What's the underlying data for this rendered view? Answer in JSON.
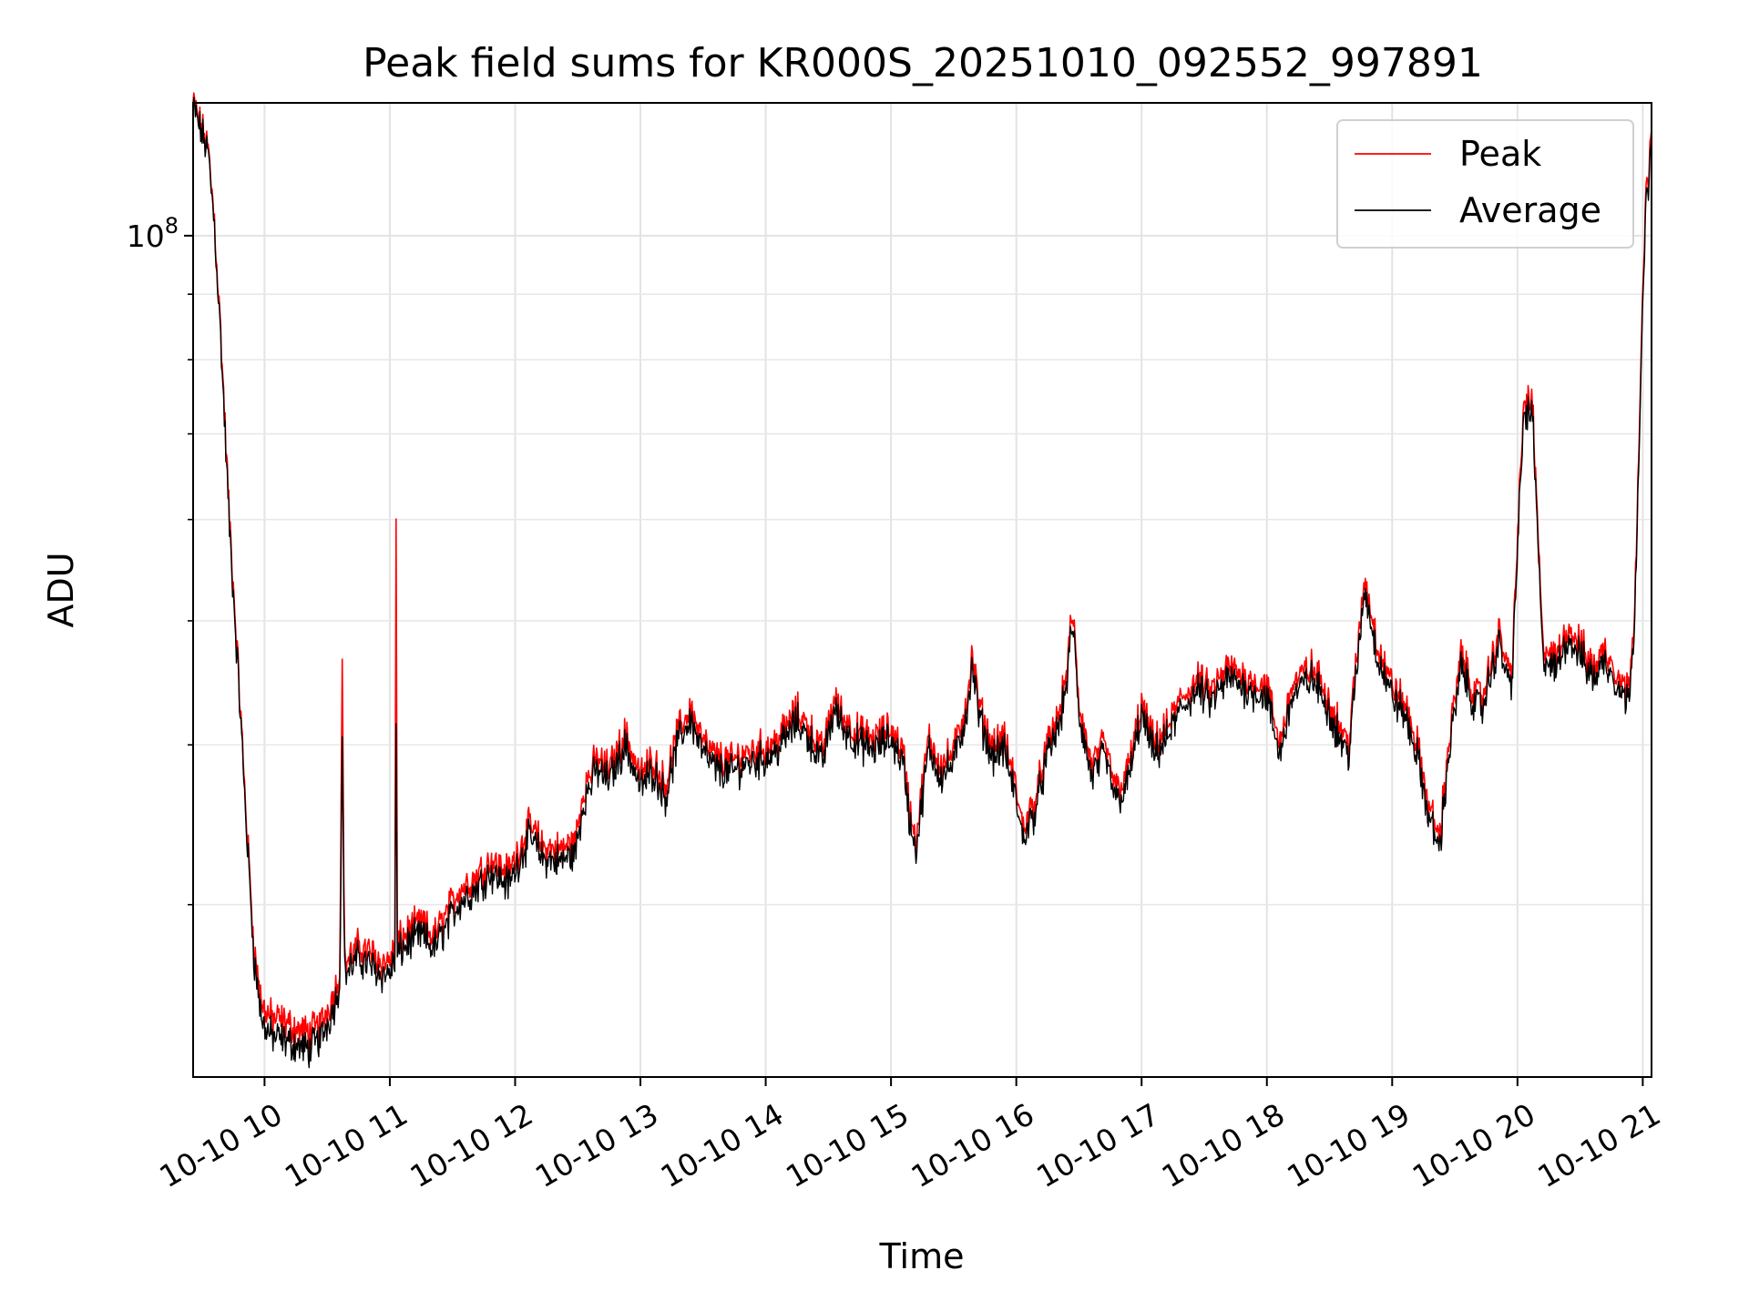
{
  "chart_data": {
    "type": "line",
    "title": "Peak field sums for KR000S_20251010_092552_997891",
    "xlabel": "Time",
    "ylabel": "ADU",
    "yscale": "log",
    "ylim": [
      22000000,
      127000000
    ],
    "xlim": [
      9.43,
      21.07
    ],
    "grid": true,
    "legend": {
      "position": "top-right",
      "entries": [
        "Peak",
        "Average"
      ]
    },
    "x_ticks": [
      {
        "value": 10,
        "label": "10-10 10"
      },
      {
        "value": 11,
        "label": "10-10 11"
      },
      {
        "value": 12,
        "label": "10-10 12"
      },
      {
        "value": 13,
        "label": "10-10 13"
      },
      {
        "value": 14,
        "label": "10-10 14"
      },
      {
        "value": 15,
        "label": "10-10 15"
      },
      {
        "value": 16,
        "label": "10-10 16"
      },
      {
        "value": 17,
        "label": "10-10 17"
      },
      {
        "value": 18,
        "label": "10-10 18"
      },
      {
        "value": 19,
        "label": "10-10 19"
      },
      {
        "value": 20,
        "label": "10-10 20"
      },
      {
        "value": 21,
        "label": "10-10 21"
      }
    ],
    "y_major_ticks": [
      {
        "value": 100000000,
        "base": "10",
        "exp": "8"
      }
    ],
    "y_minor_ticks": [
      30000000,
      40000000,
      50000000,
      60000000,
      70000000,
      80000000,
      90000000
    ],
    "series": [
      {
        "name": "Peak",
        "color": "#ff0000",
        "points": [
          [
            9.43,
            127000000
          ],
          [
            9.55,
            117000000
          ],
          [
            9.6,
            103000000
          ],
          [
            9.65,
            84000000
          ],
          [
            9.72,
            60000000
          ],
          [
            9.8,
            44000000
          ],
          [
            9.87,
            33000000
          ],
          [
            9.92,
            27500000
          ],
          [
            9.98,
            25000000
          ],
          [
            10.05,
            24500000
          ],
          [
            10.15,
            24300000
          ],
          [
            10.25,
            24000000
          ],
          [
            10.35,
            23800000
          ],
          [
            10.45,
            24200000
          ],
          [
            10.55,
            25500000
          ],
          [
            10.6,
            26500000
          ],
          [
            10.62,
            46000000
          ],
          [
            10.64,
            27000000
          ],
          [
            10.75,
            27800000
          ],
          [
            10.85,
            27500000
          ],
          [
            10.95,
            27000000
          ],
          [
            11.0,
            27200000
          ],
          [
            11.04,
            27600000
          ],
          [
            11.05,
            60000000
          ],
          [
            11.06,
            28000000
          ],
          [
            11.15,
            28600000
          ],
          [
            11.25,
            29000000
          ],
          [
            11.35,
            28300000
          ],
          [
            11.45,
            29500000
          ],
          [
            11.55,
            30800000
          ],
          [
            11.68,
            31500000
          ],
          [
            11.8,
            32500000
          ],
          [
            11.95,
            31800000
          ],
          [
            12.05,
            33500000
          ],
          [
            12.12,
            34600000
          ],
          [
            12.22,
            33300000
          ],
          [
            12.35,
            33100000
          ],
          [
            12.48,
            33600000
          ],
          [
            12.55,
            37000000
          ],
          [
            12.65,
            39000000
          ],
          [
            12.75,
            38300000
          ],
          [
            12.88,
            40800000
          ],
          [
            13.0,
            37800000
          ],
          [
            13.1,
            39000000
          ],
          [
            13.2,
            37200000
          ],
          [
            13.3,
            41000000
          ],
          [
            13.4,
            42700000
          ],
          [
            13.5,
            40200000
          ],
          [
            13.6,
            39100000
          ],
          [
            13.72,
            38800000
          ],
          [
            13.85,
            39500000
          ],
          [
            14.0,
            39800000
          ],
          [
            14.1,
            40500000
          ],
          [
            14.25,
            42500000
          ],
          [
            14.35,
            41200000
          ],
          [
            14.45,
            39500000
          ],
          [
            14.55,
            43500000
          ],
          [
            14.62,
            42000000
          ],
          [
            14.72,
            41000000
          ],
          [
            14.85,
            40400000
          ],
          [
            15.0,
            41200000
          ],
          [
            15.1,
            39500000
          ],
          [
            15.15,
            35500000
          ],
          [
            15.2,
            33800000
          ],
          [
            15.3,
            40500000
          ],
          [
            15.4,
            38600000
          ],
          [
            15.5,
            39500000
          ],
          [
            15.6,
            43000000
          ],
          [
            15.65,
            47000000
          ],
          [
            15.7,
            43000000
          ],
          [
            15.8,
            40000000
          ],
          [
            15.9,
            40500000
          ],
          [
            16.0,
            37000000
          ],
          [
            16.05,
            34500000
          ],
          [
            16.15,
            36200000
          ],
          [
            16.25,
            40000000
          ],
          [
            16.35,
            42500000
          ],
          [
            16.4,
            45500000
          ],
          [
            16.45,
            51000000
          ],
          [
            16.5,
            43000000
          ],
          [
            16.6,
            38500000
          ],
          [
            16.7,
            40000000
          ],
          [
            16.8,
            37000000
          ],
          [
            16.88,
            37800000
          ],
          [
            17.0,
            43000000
          ],
          [
            17.1,
            40000000
          ],
          [
            17.2,
            41200000
          ],
          [
            17.32,
            43500000
          ],
          [
            17.45,
            45000000
          ],
          [
            17.55,
            44000000
          ],
          [
            17.7,
            46000000
          ],
          [
            17.85,
            45000000
          ],
          [
            18.0,
            44500000
          ],
          [
            18.1,
            40000000
          ],
          [
            18.2,
            44500000
          ],
          [
            18.35,
            46000000
          ],
          [
            18.45,
            44500000
          ],
          [
            18.55,
            42000000
          ],
          [
            18.65,
            40000000
          ],
          [
            18.72,
            47000000
          ],
          [
            18.78,
            54000000
          ],
          [
            18.88,
            48000000
          ],
          [
            19.0,
            44500000
          ],
          [
            19.1,
            43000000
          ],
          [
            19.2,
            40000000
          ],
          [
            19.3,
            35500000
          ],
          [
            19.38,
            34000000
          ],
          [
            19.45,
            40000000
          ],
          [
            19.55,
            47000000
          ],
          [
            19.65,
            44000000
          ],
          [
            19.72,
            43500000
          ],
          [
            19.85,
            49000000
          ],
          [
            19.95,
            45000000
          ],
          [
            20.05,
            74000000
          ],
          [
            20.12,
            74000000
          ],
          [
            20.2,
            48000000
          ],
          [
            20.3,
            46500000
          ],
          [
            20.4,
            49500000
          ],
          [
            20.5,
            48000000
          ],
          [
            20.6,
            46000000
          ],
          [
            20.7,
            47500000
          ],
          [
            20.8,
            45500000
          ],
          [
            20.88,
            44000000
          ],
          [
            20.93,
            50000000
          ],
          [
            20.98,
            75000000
          ],
          [
            21.02,
            105000000
          ],
          [
            21.07,
            121000000
          ]
        ]
      },
      {
        "name": "Average",
        "color": "#000000",
        "points": [
          [
            9.43,
            126000000
          ],
          [
            9.55,
            116000000
          ],
          [
            9.6,
            102000000
          ],
          [
            9.65,
            83000000
          ],
          [
            9.72,
            59000000
          ],
          [
            9.8,
            43500000
          ],
          [
            9.87,
            32500000
          ],
          [
            9.92,
            27000000
          ],
          [
            9.98,
            24300000
          ],
          [
            10.05,
            23700000
          ],
          [
            10.15,
            23500000
          ],
          [
            10.25,
            23300000
          ],
          [
            10.35,
            23100000
          ],
          [
            10.45,
            23600000
          ],
          [
            10.55,
            24900000
          ],
          [
            10.6,
            26000000
          ],
          [
            10.62,
            40000000
          ],
          [
            10.64,
            26500000
          ],
          [
            10.75,
            27200000
          ],
          [
            10.85,
            26900000
          ],
          [
            10.95,
            26400000
          ],
          [
            11.0,
            26600000
          ],
          [
            11.04,
            27000000
          ],
          [
            11.05,
            41500000
          ],
          [
            11.06,
            27400000
          ],
          [
            11.15,
            28000000
          ],
          [
            11.25,
            28400000
          ],
          [
            11.35,
            27700000
          ],
          [
            11.45,
            28800000
          ],
          [
            11.55,
            30100000
          ],
          [
            11.68,
            30800000
          ],
          [
            11.8,
            31800000
          ],
          [
            11.95,
            31100000
          ],
          [
            12.05,
            32800000
          ],
          [
            12.12,
            33900000
          ],
          [
            12.22,
            32600000
          ],
          [
            12.35,
            32400000
          ],
          [
            12.48,
            32900000
          ],
          [
            12.55,
            36200000
          ],
          [
            12.65,
            38200000
          ],
          [
            12.75,
            37500000
          ],
          [
            12.88,
            40000000
          ],
          [
            13.0,
            37000000
          ],
          [
            13.1,
            38200000
          ],
          [
            13.2,
            36400000
          ],
          [
            13.3,
            40200000
          ],
          [
            13.4,
            41900000
          ],
          [
            13.5,
            39400000
          ],
          [
            13.6,
            38300000
          ],
          [
            13.72,
            38000000
          ],
          [
            13.85,
            38700000
          ],
          [
            14.0,
            39000000
          ],
          [
            14.1,
            39700000
          ],
          [
            14.25,
            41700000
          ],
          [
            14.35,
            40400000
          ],
          [
            14.45,
            38700000
          ],
          [
            14.55,
            42700000
          ],
          [
            14.62,
            41200000
          ],
          [
            14.72,
            40200000
          ],
          [
            14.85,
            39600000
          ],
          [
            15.0,
            40400000
          ],
          [
            15.1,
            38700000
          ],
          [
            15.15,
            34800000
          ],
          [
            15.2,
            33100000
          ],
          [
            15.3,
            39700000
          ],
          [
            15.4,
            37800000
          ],
          [
            15.5,
            38700000
          ],
          [
            15.6,
            42200000
          ],
          [
            15.65,
            46000000
          ],
          [
            15.7,
            42200000
          ],
          [
            15.8,
            39200000
          ],
          [
            15.9,
            39700000
          ],
          [
            16.0,
            36200000
          ],
          [
            16.05,
            33800000
          ],
          [
            16.15,
            35500000
          ],
          [
            16.25,
            39200000
          ],
          [
            16.35,
            41700000
          ],
          [
            16.4,
            44600000
          ],
          [
            16.45,
            50000000
          ],
          [
            16.5,
            42200000
          ],
          [
            16.6,
            37700000
          ],
          [
            16.7,
            39200000
          ],
          [
            16.8,
            36200000
          ],
          [
            16.88,
            37000000
          ],
          [
            17.0,
            42200000
          ],
          [
            17.1,
            39200000
          ],
          [
            17.2,
            40400000
          ],
          [
            17.32,
            42700000
          ],
          [
            17.45,
            44100000
          ],
          [
            17.55,
            43100000
          ],
          [
            17.7,
            45100000
          ],
          [
            17.85,
            44100000
          ],
          [
            18.0,
            43600000
          ],
          [
            18.1,
            39200000
          ],
          [
            18.2,
            43600000
          ],
          [
            18.35,
            45100000
          ],
          [
            18.45,
            43600000
          ],
          [
            18.55,
            41200000
          ],
          [
            18.65,
            39200000
          ],
          [
            18.72,
            46000000
          ],
          [
            18.78,
            53000000
          ],
          [
            18.88,
            47000000
          ],
          [
            19.0,
            43600000
          ],
          [
            19.1,
            42200000
          ],
          [
            19.2,
            39200000
          ],
          [
            19.3,
            34800000
          ],
          [
            19.38,
            33300000
          ],
          [
            19.45,
            39200000
          ],
          [
            19.55,
            46000000
          ],
          [
            19.65,
            43100000
          ],
          [
            19.72,
            42700000
          ],
          [
            19.85,
            48000000
          ],
          [
            19.95,
            44100000
          ],
          [
            20.05,
            72500000
          ],
          [
            20.12,
            72500000
          ],
          [
            20.2,
            47000000
          ],
          [
            20.3,
            45600000
          ],
          [
            20.4,
            48500000
          ],
          [
            20.5,
            47000000
          ],
          [
            20.6,
            45100000
          ],
          [
            20.7,
            46500000
          ],
          [
            20.8,
            44600000
          ],
          [
            20.88,
            43100000
          ],
          [
            20.93,
            49000000
          ],
          [
            20.98,
            73500000
          ],
          [
            21.02,
            103000000
          ],
          [
            21.07,
            119000000
          ]
        ]
      }
    ]
  }
}
